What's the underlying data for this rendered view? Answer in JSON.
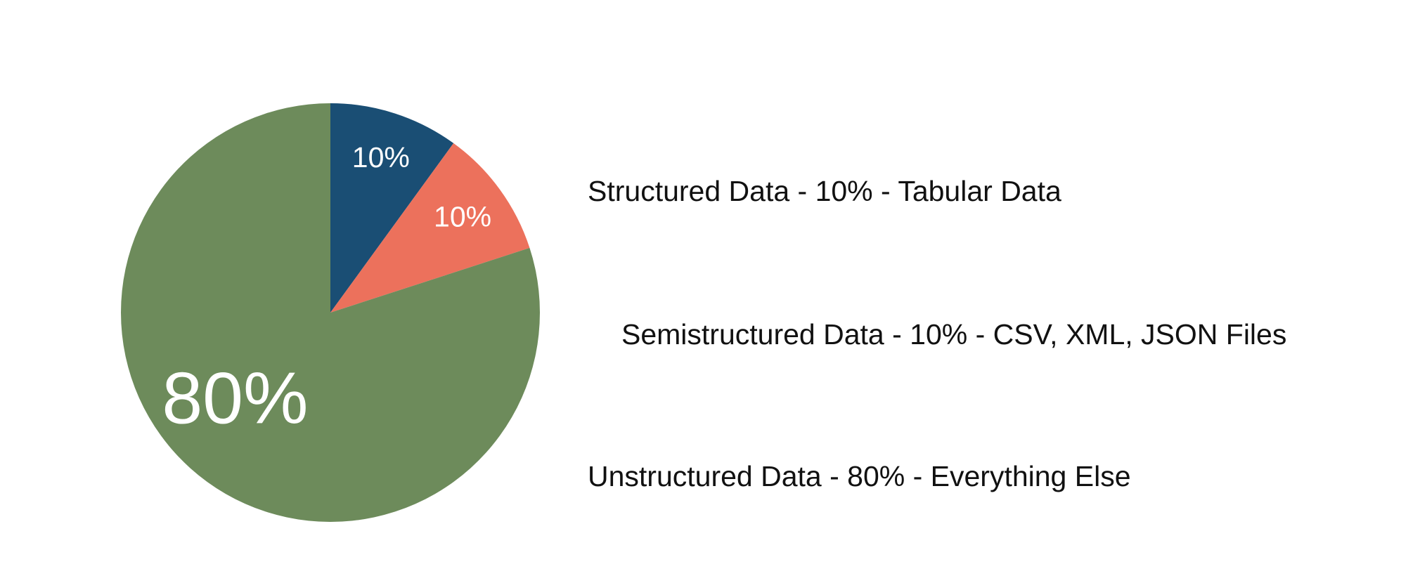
{
  "chart_data": {
    "type": "pie",
    "slices": [
      {
        "category": "Structured Data",
        "value": 10,
        "label": "10%",
        "color": "#1a4e74"
      },
      {
        "category": "Semistructured Data",
        "value": 10,
        "label": "10%",
        "color": "#ec715c"
      },
      {
        "category": "Unstructured Data",
        "value": 80,
        "label": "80%",
        "color": "#6d8b5b"
      }
    ],
    "legend": [
      {
        "text": "Structured Data - 10% - Tabular Data"
      },
      {
        "text": "Semistructured Data - 10% - CSV, XML, JSON Files"
      },
      {
        "text": "Unstructured Data - 80% - Everything Else"
      }
    ],
    "legend_placement": "right",
    "start_angle": "12 o'clock, clockwise"
  }
}
